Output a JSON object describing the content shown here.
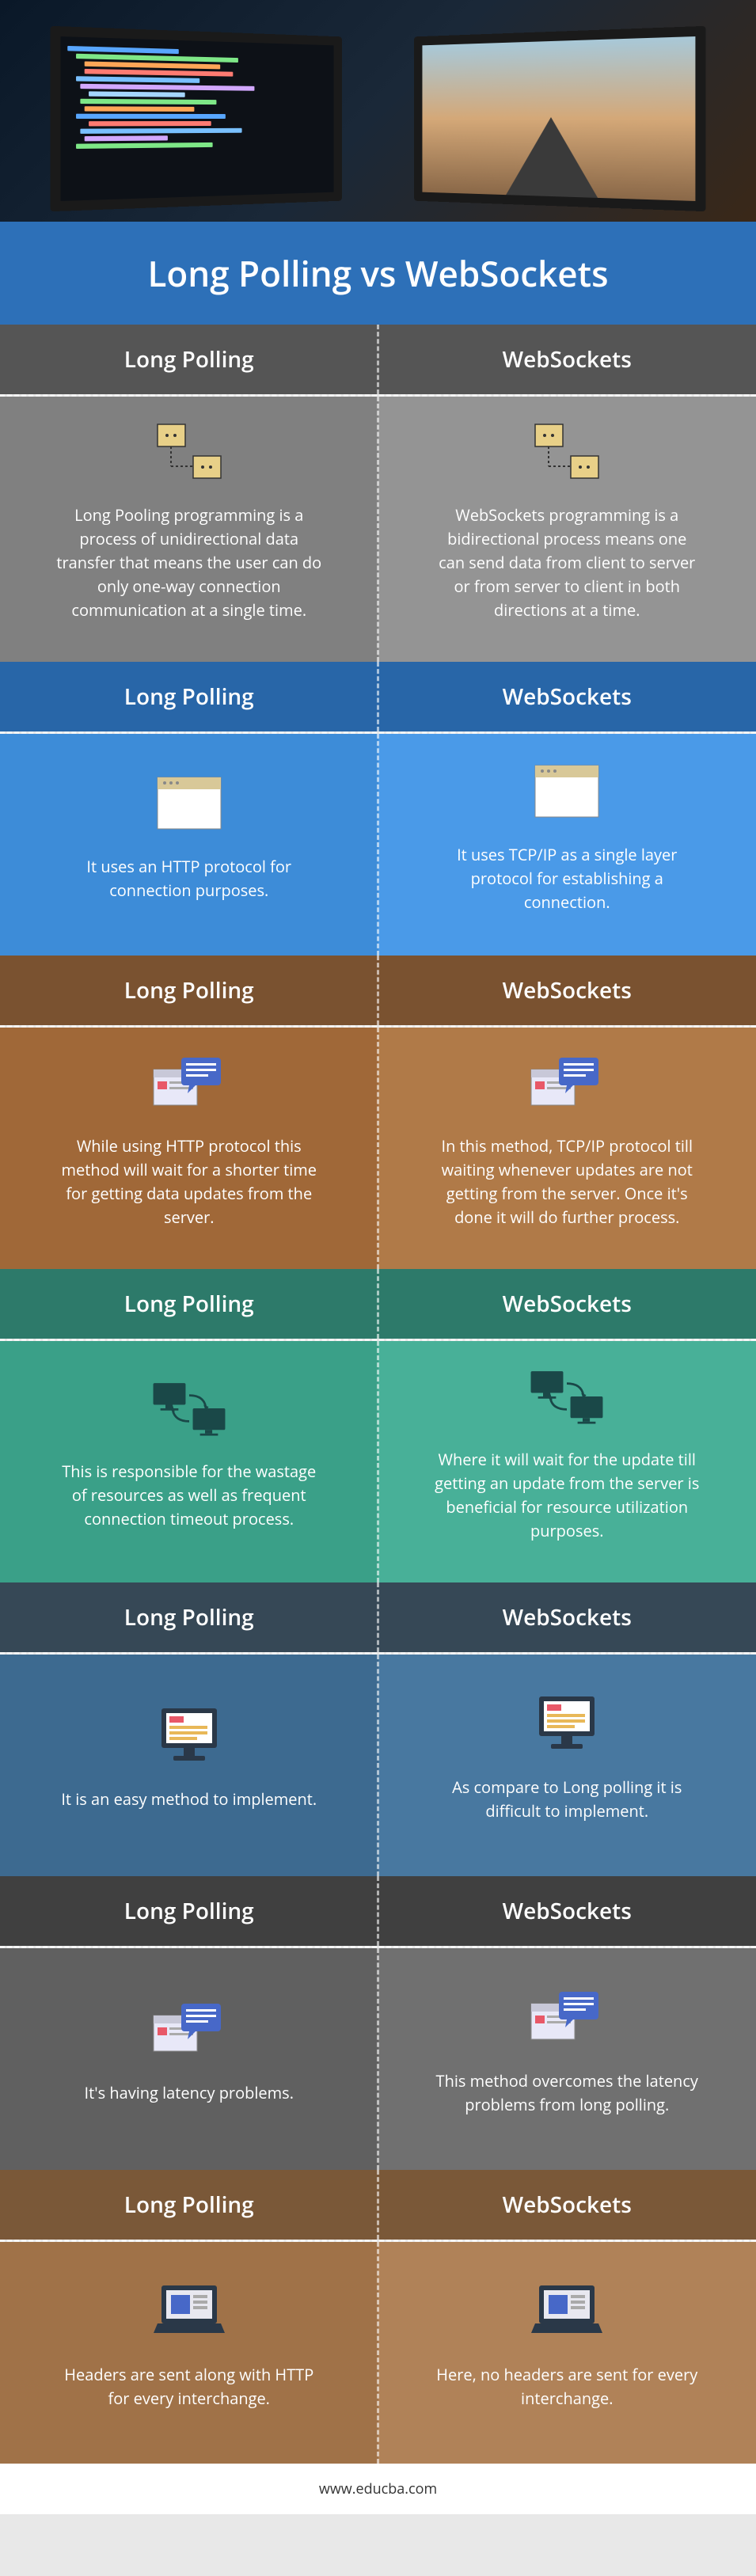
{
  "title": "Long Polling vs WebSockets",
  "footer": "www.educba.com",
  "sections": [
    {
      "header_left_bg": "#555555",
      "header_right_bg": "#555555",
      "left_bg": "#808080",
      "right_bg": "#949494",
      "left_label": "Long Polling",
      "right_label": "WebSockets",
      "icon": "network-nodes",
      "icon_left": "#e8d088",
      "icon_right": "#e8d088",
      "left_text": "Long Pooling programming is a process of unidirectional data transfer that means the user can do only one-way connection communication at a single time.",
      "right_text": "WebSockets programming is a bidirectional process means one can send data from client to server or from server to client in both directions at a time."
    },
    {
      "header_left_bg": "#2866a8",
      "header_right_bg": "#2866a8",
      "left_bg": "#3d8cd8",
      "right_bg": "#4a9ae8",
      "left_label": "Long Polling",
      "right_label": "WebSockets",
      "icon": "window",
      "icon_left": "#ffffff",
      "icon_right": "#ffffff",
      "left_text": "It uses an HTTP protocol for connection purposes.",
      "right_text": "It uses TCP/IP as a single layer protocol for establishing a connection."
    },
    {
      "header_left_bg": "#7a5230",
      "header_right_bg": "#7a5230",
      "left_bg": "#a06838",
      "right_bg": "#b07a48",
      "left_label": "Long Polling",
      "right_label": "WebSockets",
      "icon": "chat-window",
      "icon_left": "#4768c8",
      "icon_right": "#4768c8",
      "left_text": "While using HTTP protocol this method will wait for a shorter time for getting data updates from the server.",
      "right_text": "In this method, TCP/IP protocol till waiting whenever updates are not getting from the server. Once it's done it will do further process."
    },
    {
      "header_left_bg": "#2d7a6a",
      "header_right_bg": "#2d7a6a",
      "left_bg": "#3aa088",
      "right_bg": "#48b098",
      "left_label": "Long Polling",
      "right_label": "WebSockets",
      "icon": "screens-transfer",
      "icon_left": "#1a4848",
      "icon_right": "#1a4848",
      "left_text": "This is responsible for the wastage of resources as well as frequent connection timeout process.",
      "right_text": "Where it will wait for the update till getting an update from the server is beneficial for resource utilization purposes."
    },
    {
      "header_left_bg": "#364856",
      "header_right_bg": "#364856",
      "left_bg": "#3d6a90",
      "right_bg": "#4878a0",
      "left_label": "Long Polling",
      "right_label": "WebSockets",
      "icon": "computer",
      "icon_left": "#ffffff",
      "icon_right": "#ffffff",
      "left_text": "It is an easy method to implement.",
      "right_text": "As compare to Long polling it is difficult to implement."
    },
    {
      "header_left_bg": "#404040",
      "header_right_bg": "#404040",
      "left_bg": "#606060",
      "right_bg": "#707070",
      "left_label": "Long Polling",
      "right_label": "WebSockets",
      "icon": "chat-window",
      "icon_left": "#4768c8",
      "icon_right": "#4768c8",
      "left_text": "It's having latency problems.",
      "right_text": "This method overcomes the latency problems from long polling."
    },
    {
      "header_left_bg": "#7a5838",
      "header_right_bg": "#7a5838",
      "left_bg": "#a07248",
      "right_bg": "#b08258",
      "left_label": "Long Polling",
      "right_label": "WebSockets",
      "icon": "laptop",
      "icon_left": "#4768c8",
      "icon_right": "#4768c8",
      "left_text": "Headers are sent along with HTTP for every interchange.",
      "right_text": "Here, no headers are sent for every interchange."
    }
  ]
}
